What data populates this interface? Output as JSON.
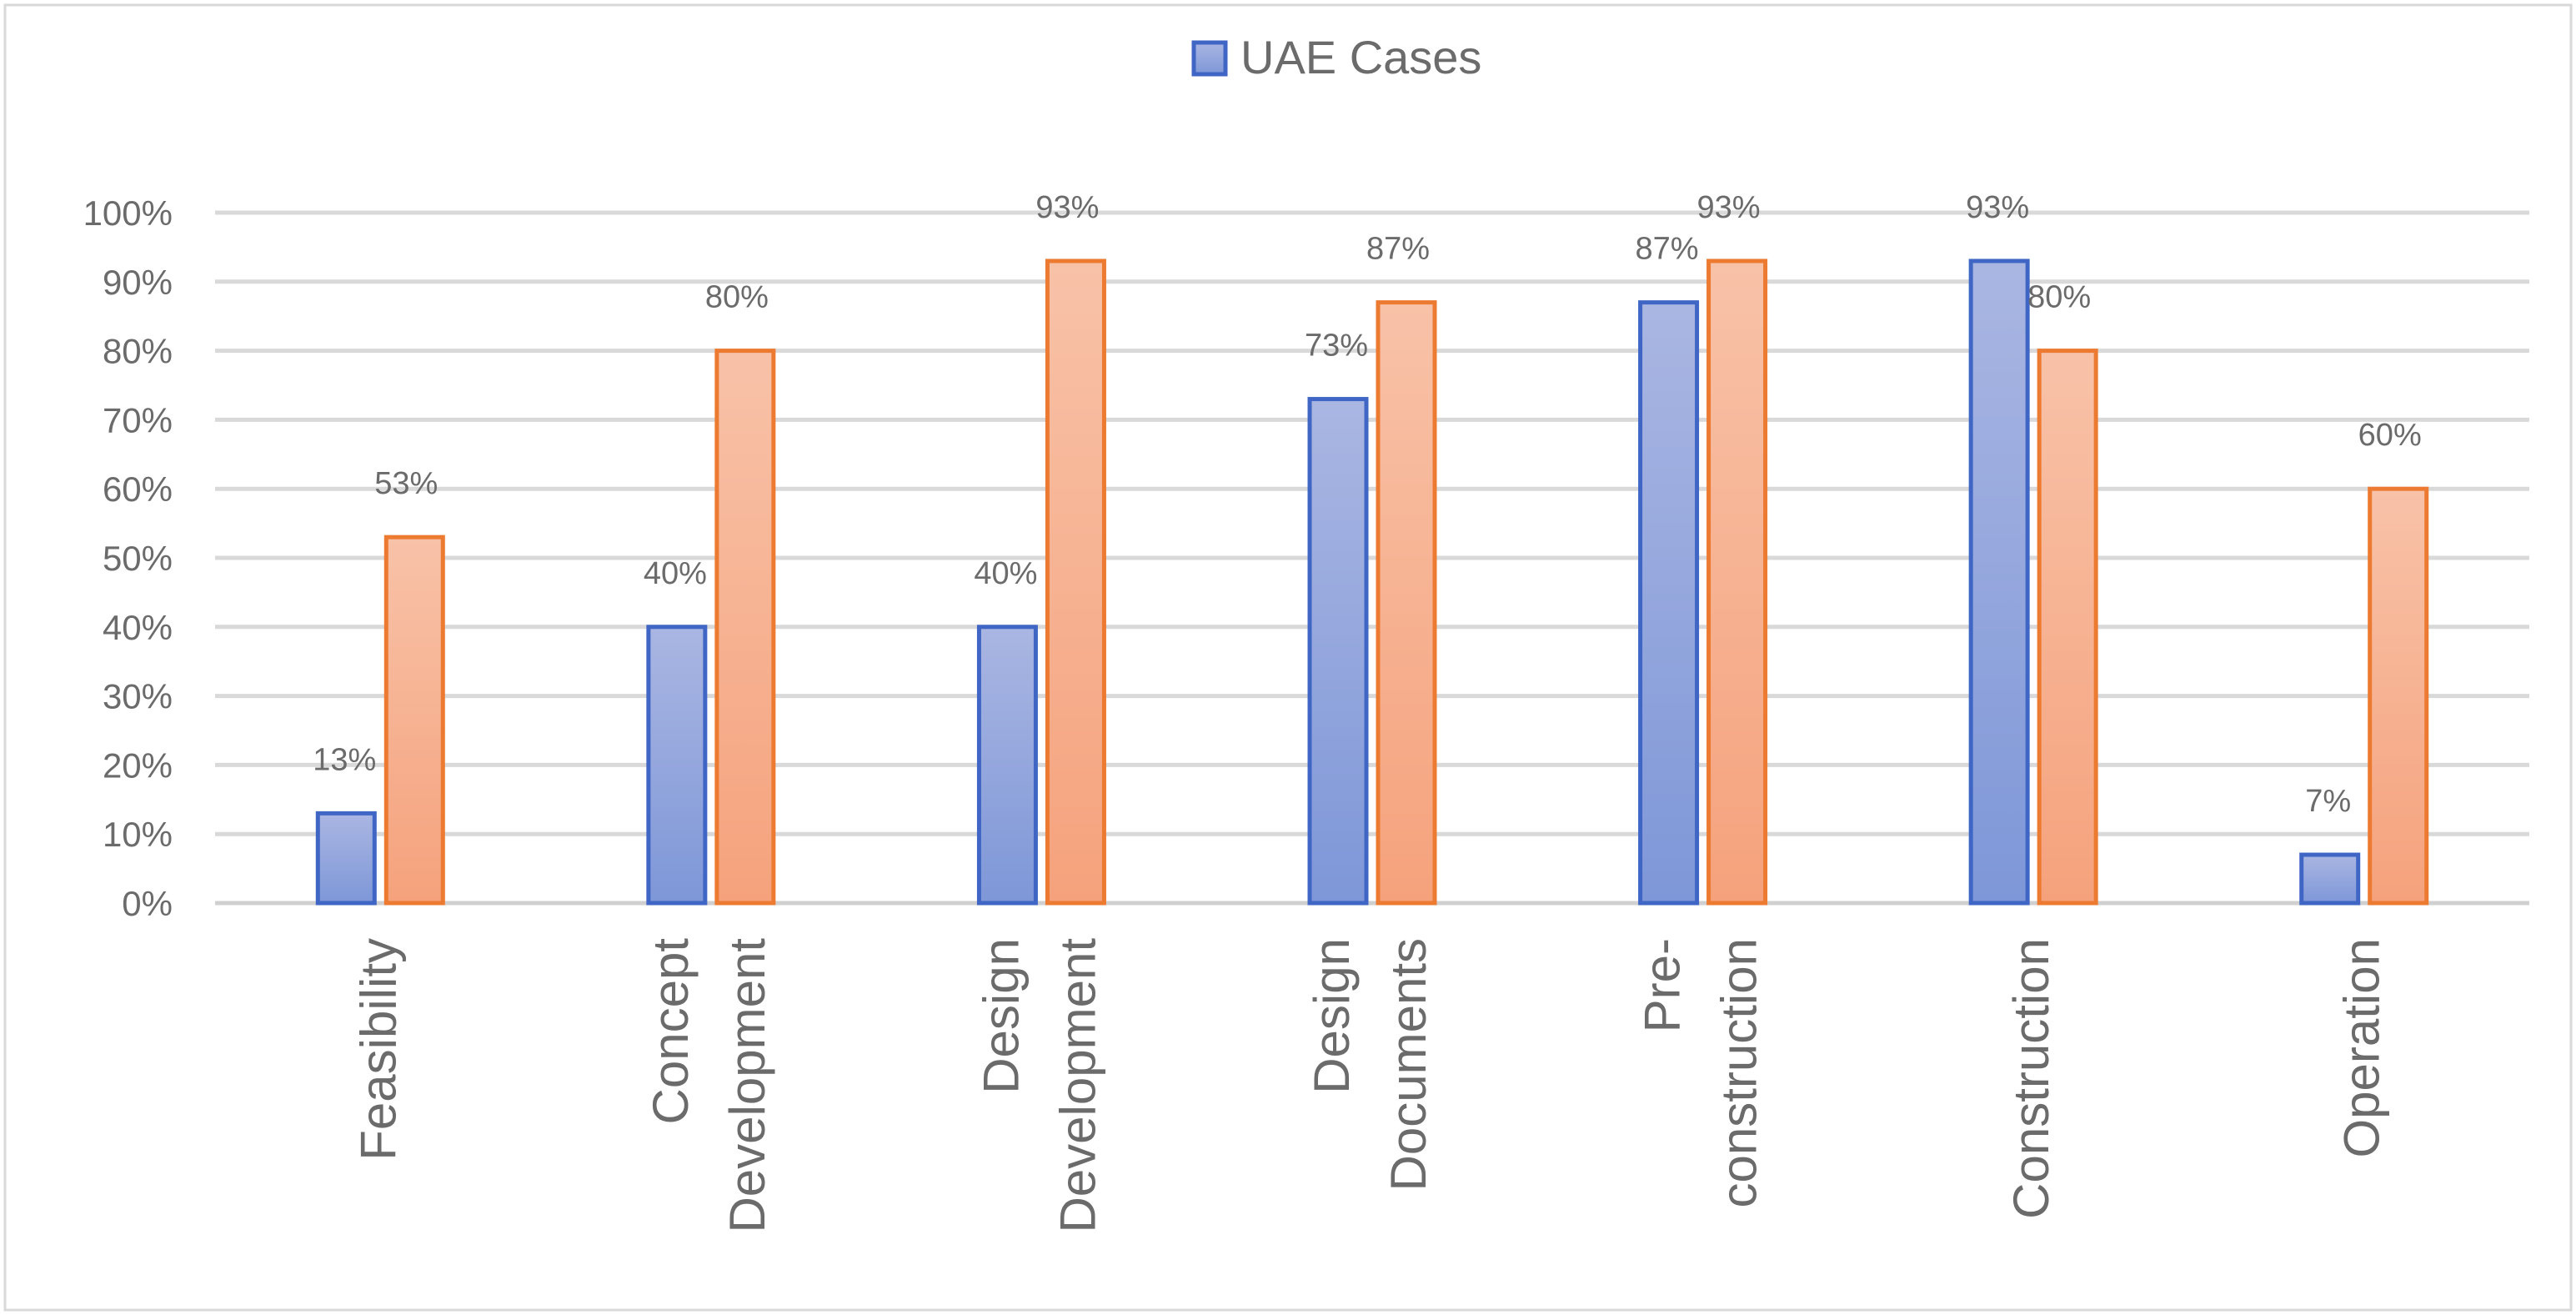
{
  "chart_data": {
    "type": "bar",
    "title": "",
    "xlabel": "",
    "ylabel": "",
    "ylim": [
      0,
      100
    ],
    "y_ticks": [
      "0%",
      "10%",
      "20%",
      "30%",
      "40%",
      "50%",
      "60%",
      "70%",
      "80%",
      "90%",
      "100%"
    ],
    "grid": true,
    "legend_position": "top-center",
    "categories": [
      [
        "Feasibility"
      ],
      [
        "Concept",
        "Development"
      ],
      [
        "Design",
        "Development"
      ],
      [
        "Design",
        "Documents"
      ],
      [
        "Pre-",
        "construction"
      ],
      [
        "Construction"
      ],
      [
        "Operation"
      ]
    ],
    "series": [
      {
        "name": "UAE Cases",
        "values": [
          13,
          40,
          40,
          73,
          87,
          93,
          7
        ],
        "labels": [
          "13%",
          "40%",
          "40%",
          "73%",
          "87%",
          "93%",
          "7%"
        ],
        "color_top": "#aab6e2",
        "color_bottom": "#7e97d8",
        "stroke": "#3f66c4",
        "in_legend": true
      },
      {
        "name": "",
        "values": [
          53,
          80,
          93,
          87,
          93,
          80,
          60
        ],
        "labels": [
          "53%",
          "80%",
          "93%",
          "87%",
          "93%",
          "80%",
          "60%"
        ],
        "color_top": "#f8c2a8",
        "color_bottom": "#f5a27c",
        "stroke": "#ec7a30",
        "in_legend": false
      }
    ]
  },
  "colors": {
    "gridline": "#d9d9d9",
    "axis": "#d0d0d0",
    "text": "#6b6b6b",
    "frame": "#d9d9d9",
    "background": "#ffffff"
  }
}
